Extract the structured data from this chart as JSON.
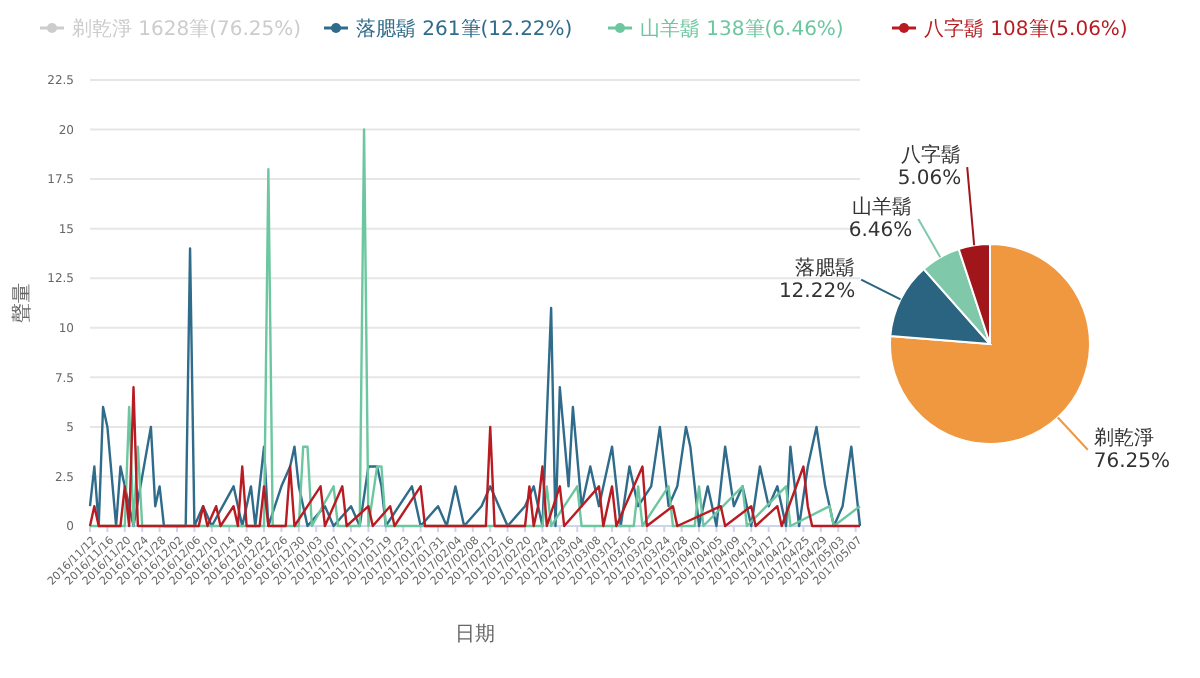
{
  "chart_data": [
    {
      "type": "line",
      "xlabel": "日期",
      "ylabel": "聲量",
      "xlim": [
        "2016-11-12",
        "2017-05-08"
      ],
      "ylim": [
        0,
        22.5
      ],
      "yticks": [
        0,
        2.5,
        5,
        7.5,
        10,
        12.5,
        15,
        17.5,
        20,
        22.5
      ],
      "grid": "y",
      "legend": "top",
      "marker": "none",
      "line_style": "solid",
      "xticks": [
        {
          "value": "2016-11-12",
          "label": "2016/11/12"
        },
        {
          "value": "2016-11-16",
          "label": "2016/11/16"
        },
        {
          "value": "2016-11-20",
          "label": "2016/11/20"
        },
        {
          "value": "2016-11-24",
          "label": "2016/11/24"
        },
        {
          "value": "2016-11-28",
          "label": "2016/11/28"
        },
        {
          "value": "2016-12-02",
          "label": "2016/12/02"
        },
        {
          "value": "2016-12-06",
          "label": "2016/12/06"
        },
        {
          "value": "2016-12-10",
          "label": "2016/12/10"
        },
        {
          "value": "2016-12-14",
          "label": "2016/12/14"
        },
        {
          "value": "2016-12-18",
          "label": "2016/12/18"
        },
        {
          "value": "2016-12-22",
          "label": "2016/12/22"
        },
        {
          "value": "2016-12-26",
          "label": "2016/12/26"
        },
        {
          "value": "2016-12-30",
          "label": "2016/12/30"
        },
        {
          "value": "2017-01-03",
          "label": "2017/01/03"
        },
        {
          "value": "2017-01-07",
          "label": "2017/01/07"
        },
        {
          "value": "2017-01-11",
          "label": "2017/01/11"
        },
        {
          "value": "2017-01-15",
          "label": "2017/01/15"
        },
        {
          "value": "2017-01-19",
          "label": "2017/01/19"
        },
        {
          "value": "2017-01-23",
          "label": "2017/01/23"
        },
        {
          "value": "2017-01-27",
          "label": "2017/01/27"
        },
        {
          "value": "2017-01-31",
          "label": "2017/01/31"
        },
        {
          "value": "2017-02-04",
          "label": "2017/02/04"
        },
        {
          "value": "2017-02-08",
          "label": "2017/02/08"
        },
        {
          "value": "2017-02-12",
          "label": "2017/02/12"
        },
        {
          "value": "2017-02-16",
          "label": "2017/02/16"
        },
        {
          "value": "2017-02-20",
          "label": "2017/02/20"
        },
        {
          "value": "2017-02-24",
          "label": "2017/02/24"
        },
        {
          "value": "2017-02-28",
          "label": "2017/02/28"
        },
        {
          "value": "2017-03-04",
          "label": "2017/03/04"
        },
        {
          "value": "2017-03-08",
          "label": "2017/03/08"
        },
        {
          "value": "2017-03-12",
          "label": "2017/03/12"
        },
        {
          "value": "2017-03-16",
          "label": "2017/03/16"
        },
        {
          "value": "2017-03-20",
          "label": "2017/03/20"
        },
        {
          "value": "2017-03-24",
          "label": "2017/03/24"
        },
        {
          "value": "2017-03-28",
          "label": "2017/03/28"
        },
        {
          "value": "2017-04-01",
          "label": "2017/04/01"
        },
        {
          "value": "2017-04-05",
          "label": "2017/04/05"
        },
        {
          "value": "2017-04-09",
          "label": "2017/04/09"
        },
        {
          "value": "2017-04-13",
          "label": "2017/04/13"
        },
        {
          "value": "2017-04-17",
          "label": "2017/04/17"
        },
        {
          "value": "2017-04-21",
          "label": "2017/04/21"
        },
        {
          "value": "2017-04-25",
          "label": "2017/04/25"
        },
        {
          "value": "2017-04-29",
          "label": "2017/04/29"
        },
        {
          "value": "2017-05-03",
          "label": "2017/05/03"
        },
        {
          "value": "2017-05-07",
          "label": "2017/05/07"
        }
      ],
      "series": [
        {
          "name": "剃乾淨 1628筆(76.25%)",
          "color": "#cccccc"
        },
        {
          "name": "落腮鬍 261筆(12.22%)",
          "color": "#2f6b8a",
          "x": [
            "2016-11-12",
            "2016-11-13",
            "2016-11-14",
            "2016-11-15",
            "2016-11-16",
            "2016-11-18",
            "2016-11-19",
            "2016-11-20",
            "2016-11-22",
            "2016-11-26",
            "2016-11-27",
            "2016-11-28",
            "2016-11-29",
            "2016-12-04",
            "2016-12-05",
            "2016-12-06",
            "2016-12-08",
            "2016-12-10",
            "2016-12-15",
            "2016-12-17",
            "2016-12-19",
            "2016-12-20",
            "2016-12-22",
            "2016-12-23",
            "2016-12-26",
            "2016-12-28",
            "2016-12-29",
            "2016-12-30",
            "2017-01-01",
            "2017-01-05",
            "2017-01-07",
            "2017-01-11",
            "2017-01-13",
            "2017-01-15",
            "2017-01-17",
            "2017-01-18",
            "2017-01-19",
            "2017-01-25",
            "2017-01-27",
            "2017-01-31",
            "2017-02-02",
            "2017-02-04",
            "2017-02-06",
            "2017-02-10",
            "2017-02-12",
            "2017-02-14",
            "2017-02-16",
            "2017-02-20",
            "2017-02-22",
            "2017-02-24",
            "2017-02-26",
            "2017-02-27",
            "2017-02-28",
            "2017-03-02",
            "2017-03-03",
            "2017-03-05",
            "2017-03-07",
            "2017-03-09",
            "2017-03-12",
            "2017-03-14",
            "2017-03-16",
            "2017-03-18",
            "2017-03-21",
            "2017-03-23",
            "2017-03-25",
            "2017-03-27",
            "2017-03-29",
            "2017-03-30",
            "2017-04-01",
            "2017-04-03",
            "2017-04-05",
            "2017-04-07",
            "2017-04-09",
            "2017-04-11",
            "2017-04-13",
            "2017-04-15",
            "2017-04-17",
            "2017-04-19",
            "2017-04-21",
            "2017-04-22",
            "2017-04-24",
            "2017-04-26",
            "2017-04-28",
            "2017-04-30",
            "2017-05-02",
            "2017-05-04",
            "2017-05-06",
            "2017-05-08"
          ],
          "values": [
            1,
            3,
            0,
            6,
            5,
            0,
            3,
            2,
            0,
            5,
            1,
            2,
            0,
            0,
            14,
            0,
            1,
            0,
            2,
            0,
            2,
            0,
            4,
            0,
            2,
            3,
            4,
            2,
            0,
            1,
            0,
            1,
            0,
            3,
            3,
            2,
            0,
            2,
            0,
            1,
            0,
            2,
            0,
            1,
            2,
            1,
            0,
            1,
            2,
            0,
            11,
            0,
            7,
            2,
            6,
            1,
            3,
            1,
            4,
            0,
            3,
            1,
            2,
            5,
            1,
            2,
            5,
            4,
            0,
            2,
            0,
            4,
            1,
            2,
            0,
            3,
            1,
            2,
            0,
            4,
            0,
            3,
            5,
            2,
            0,
            1,
            4,
            0
          ]
        },
        {
          "name": "山羊鬍 138筆(6.46%)",
          "color": "#6cc7a0",
          "x": [
            "2016-11-12",
            "2016-11-20",
            "2016-11-21",
            "2016-11-22",
            "2016-11-23",
            "2016-11-24",
            "2016-12-22",
            "2016-12-23",
            "2016-12-24",
            "2016-12-30",
            "2016-12-31",
            "2017-01-01",
            "2017-01-02",
            "2017-01-07",
            "2017-01-08",
            "2017-01-13",
            "2017-01-14",
            "2017-01-15",
            "2017-01-17",
            "2017-01-18",
            "2017-01-19",
            "2017-02-24",
            "2017-02-25",
            "2017-02-26",
            "2017-03-04",
            "2017-03-05",
            "2017-03-17",
            "2017-03-18",
            "2017-03-19",
            "2017-03-25",
            "2017-03-26",
            "2017-03-31",
            "2017-04-01",
            "2017-04-02",
            "2017-04-11",
            "2017-04-12",
            "2017-04-21",
            "2017-04-22",
            "2017-05-01",
            "2017-05-02",
            "2017-05-08"
          ],
          "values": [
            0,
            0,
            6,
            0,
            4,
            0,
            0,
            18,
            0,
            0,
            4,
            4,
            0,
            2,
            0,
            0,
            20,
            0,
            3,
            3,
            0,
            0,
            2,
            0,
            2,
            0,
            0,
            2,
            0,
            2,
            0,
            0,
            2,
            0,
            2,
            0,
            2,
            0,
            1,
            0,
            1
          ]
        },
        {
          "name": "八字鬍 108筆(5.06%)",
          "color": "#b81c22",
          "x": [
            "2016-11-12",
            "2016-11-13",
            "2016-11-14",
            "2016-11-19",
            "2016-11-20",
            "2016-11-21",
            "2016-11-22",
            "2016-11-23",
            "2016-12-07",
            "2016-12-08",
            "2016-12-09",
            "2016-12-11",
            "2016-12-12",
            "2016-12-15",
            "2016-12-16",
            "2016-12-17",
            "2016-12-18",
            "2016-12-21",
            "2016-12-22",
            "2016-12-23",
            "2016-12-27",
            "2016-12-28",
            "2016-12-29",
            "2017-01-04",
            "2017-01-05",
            "2017-01-09",
            "2017-01-10",
            "2017-01-15",
            "2017-01-16",
            "2017-01-20",
            "2017-01-21",
            "2017-01-27",
            "2017-01-28",
            "2017-02-11",
            "2017-02-12",
            "2017-02-13",
            "2017-02-20",
            "2017-02-21",
            "2017-02-22",
            "2017-02-23",
            "2017-02-24",
            "2017-02-25",
            "2017-02-28",
            "2017-03-01",
            "2017-03-09",
            "2017-03-10",
            "2017-03-12",
            "2017-03-13",
            "2017-03-19",
            "2017-03-20",
            "2017-03-26",
            "2017-03-27",
            "2017-04-06",
            "2017-04-07",
            "2017-04-13",
            "2017-04-14",
            "2017-04-19",
            "2017-04-20",
            "2017-04-25",
            "2017-04-26",
            "2017-04-27",
            "2017-05-08"
          ],
          "values": [
            0,
            1,
            0,
            0,
            2,
            0,
            7,
            0,
            0,
            1,
            0,
            1,
            0,
            1,
            0,
            3,
            0,
            0,
            2,
            0,
            0,
            3,
            0,
            2,
            0,
            2,
            0,
            1,
            0,
            1,
            0,
            2,
            0,
            0,
            5,
            0,
            0,
            2,
            0,
            1,
            3,
            0,
            2,
            0,
            2,
            0,
            2,
            0,
            3,
            0,
            1,
            0,
            1,
            0,
            1,
            0,
            1,
            0,
            3,
            1,
            0,
            0
          ]
        }
      ]
    },
    {
      "type": "pie",
      "categories": [
        "剃乾淨",
        "落腮鬍",
        "山羊鬍",
        "八字鬍"
      ],
      "values": [
        76.25,
        12.22,
        6.46,
        5.06
      ],
      "colors": [
        "#f0983f",
        "#2b6480",
        "#7fc8a9",
        "#a0161b"
      ],
      "value_labels": [
        "76.25%",
        "12.22%",
        "6.46%",
        "5.06%"
      ]
    }
  ]
}
